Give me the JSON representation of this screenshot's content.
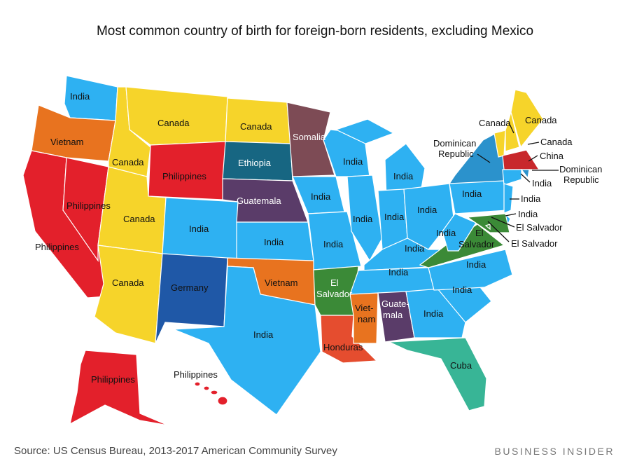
{
  "title": "Most common country of birth for foreign-born residents, excluding Mexico",
  "source": "Source: US Census Bureau, 2013-2017 American Community Survey",
  "brand": "BUSINESS INSIDER",
  "colors": {
    "India": "#2eb1f2",
    "Canada": "#f6d42a",
    "Philippines": "#e3202b",
    "Vietnam": "#e8731f",
    "Ethiopia": "#176682",
    "Somalia": "#7d4b55",
    "Guatemala": "#5a3c69",
    "Germany": "#1f58a7",
    "El Salvador": "#3b8a37",
    "Honduras": "#e54d2f",
    "Cuba": "#38b596",
    "Dominican Republic": "#2b92cc",
    "China": "#c8282c"
  },
  "states": {
    "WA": "India",
    "OR": "Vietnam",
    "CA": "Philippines",
    "NV": "Philippines",
    "ID": "Canada",
    "MT": "Canada",
    "WY": "Philippines",
    "UT": "Canada",
    "AZ": "Canada",
    "CO": "India",
    "NM": "Germany",
    "ND": "Canada",
    "SD": "Ethiopia",
    "NE": "Guatemala",
    "KS": "India",
    "OK": "Vietnam",
    "TX": "India",
    "MN": "Somalia",
    "IA": "India",
    "MO": "India",
    "AR": "El Salvador",
    "LA": "Honduras",
    "WI": "India",
    "IL": "India",
    "MI": "India",
    "IN": "India",
    "OH": "India",
    "KY": "India",
    "TN": "India",
    "MS": "Vietnam",
    "AL": "Guatemala",
    "GA": "India",
    "FL": "Cuba",
    "SC": "India",
    "NC": "India",
    "VA": "El Salvador",
    "WV": "India",
    "PA": "India",
    "NY": "Dominican Republic",
    "VT": "Canada",
    "NH": "Canada",
    "ME": "Canada",
    "MA": "China",
    "RI": "Dominican Republic",
    "CT": "India",
    "NJ": "India",
    "DE": "India",
    "MD": "El Salvador",
    "DC": "El Salvador",
    "AK": "Philippines",
    "HI": "Philippines"
  },
  "labels": {
    "WA": "India",
    "OR": "Vietnam",
    "CA": "Philippines",
    "NV": "Philippines",
    "ID": "Canada",
    "MT": "Canada",
    "WY": "Philippines",
    "UT": "Canada",
    "AZ": "Canada",
    "CO": "India",
    "NM": "Germany",
    "ND": "Canada",
    "SD": "Ethiopia",
    "NE": "Guatemala",
    "KS": "India",
    "OK": "Vietnam",
    "TX": "India",
    "MN": "Somalia",
    "IA": "India",
    "MO": "India",
    "AR1": "El",
    "AR2": "Salvador",
    "LA": "Honduras",
    "WI": "India",
    "IL": "India",
    "MI": "India",
    "IN": "India",
    "OH": "India",
    "KY": "India",
    "TN": "India",
    "MS1": "Viet-",
    "MS2": "nam",
    "AL1": "Guate-",
    "AL2": "mala",
    "GA": "India",
    "FL": "Cuba",
    "SC": "India",
    "NC": "India",
    "VA1": "El",
    "VA2": "Salvador",
    "WV": "India",
    "PA": "India",
    "NY1": "Dominican",
    "NY2": "Republic",
    "VT": "Canada",
    "NH": "Canada",
    "ME": "Canada",
    "MA": "China",
    "RI1": "Dominican",
    "RI2": "Republic",
    "CT": "India",
    "NJ": "India",
    "DE": "India",
    "MD": "El Salvador",
    "DC": "El Salvador",
    "AK": "Philippines",
    "HI": "Philippines"
  }
}
